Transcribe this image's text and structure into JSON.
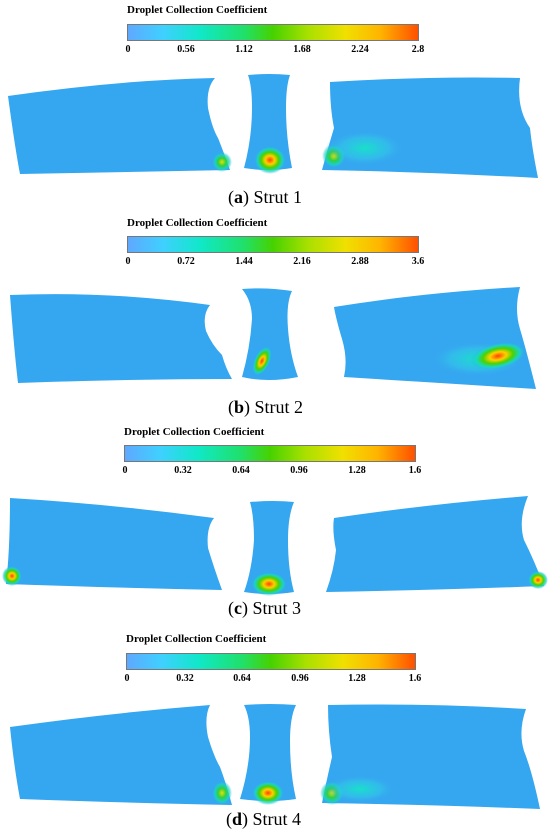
{
  "colors": {
    "base": "#35a6f0",
    "low": "#5fa8ff",
    "high": "#ff5000"
  },
  "panels": [
    {
      "legend_title": "Droplet Collection Coefficient",
      "ticks": [
        "0",
        "0.56",
        "1.12",
        "1.68",
        "2.24",
        "2.8"
      ],
      "caption_letter": "a",
      "caption_text": "Strut 1"
    },
    {
      "legend_title": "Droplet Collection Coefficient",
      "ticks": [
        "0",
        "0.72",
        "1.44",
        "2.16",
        "2.88",
        "3.6"
      ],
      "caption_letter": "b",
      "caption_text": "Strut 2"
    },
    {
      "legend_title": "Droplet Collection Coefficient",
      "ticks": [
        "0",
        "0.32",
        "0.64",
        "0.96",
        "1.28",
        "1.6"
      ],
      "caption_letter": "c",
      "caption_text": "Strut 3"
    },
    {
      "legend_title": "Droplet Collection Coefficient",
      "ticks": [
        "0",
        "0.32",
        "0.64",
        "0.96",
        "1.28",
        "1.6"
      ],
      "caption_letter": "d",
      "caption_text": "Strut 4"
    }
  ]
}
